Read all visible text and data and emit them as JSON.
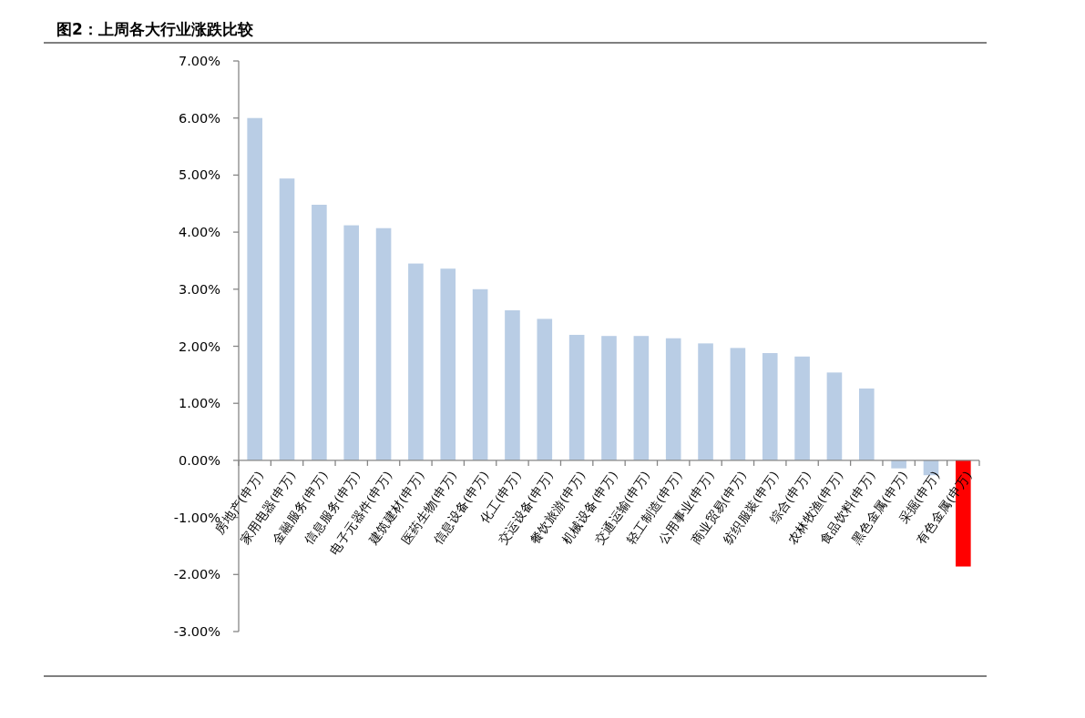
{
  "chart_data": {
    "type": "bar",
    "title": "图2：上周各大行业涨跌比较",
    "categories": [
      "房地产(申万)",
      "家用电器(申万)",
      "金融服务(申万)",
      "信息服务(申万)",
      "电子元器件(申万)",
      "建筑建材(申万)",
      "医药生物(申万)",
      "信息设备(申万)",
      "化工(申万)",
      "交运设备(申万)",
      "餐饮旅游(申万)",
      "机械设备(申万)",
      "交通运输(申万)",
      "轻工制造(申万)",
      "公用事业(申万)",
      "商业贸易(申万)",
      "纺织服装(申万)",
      "综合(申万)",
      "农林牧渔(申万)",
      "食品饮料(申万)",
      "黑色金属(申万)",
      "采掘(申万)",
      "有色金属(申万)"
    ],
    "values": [
      6.0,
      4.94,
      4.48,
      4.12,
      4.07,
      3.45,
      3.36,
      3.0,
      2.63,
      2.48,
      2.2,
      2.18,
      2.18,
      2.14,
      2.05,
      1.97,
      1.88,
      1.82,
      1.54,
      1.26,
      -0.14,
      -0.26,
      -1.86
    ],
    "colors": [
      "#b9cde5",
      "#b9cde5",
      "#b9cde5",
      "#b9cde5",
      "#b9cde5",
      "#b9cde5",
      "#b9cde5",
      "#b9cde5",
      "#b9cde5",
      "#b9cde5",
      "#b9cde5",
      "#b9cde5",
      "#b9cde5",
      "#b9cde5",
      "#b9cde5",
      "#b9cde5",
      "#b9cde5",
      "#b9cde5",
      "#b9cde5",
      "#b9cde5",
      "#b9cde5",
      "#b9cde5",
      "#ff0000"
    ],
    "ylim": [
      -3,
      7
    ],
    "yticks": [
      {
        "value": -3,
        "label": "-3.00%"
      },
      {
        "value": -2,
        "label": "-2.00%"
      },
      {
        "value": -1,
        "label": "-1.00%"
      },
      {
        "value": 0,
        "label": "0.00%"
      },
      {
        "value": 1,
        "label": "1.00%"
      },
      {
        "value": 2,
        "label": "2.00%"
      },
      {
        "value": 3,
        "label": "3.00%"
      },
      {
        "value": 4,
        "label": "4.00%"
      },
      {
        "value": 5,
        "label": "5.00%"
      },
      {
        "value": 6,
        "label": "6.00%"
      },
      {
        "value": 7,
        "label": "7.00%"
      }
    ]
  }
}
